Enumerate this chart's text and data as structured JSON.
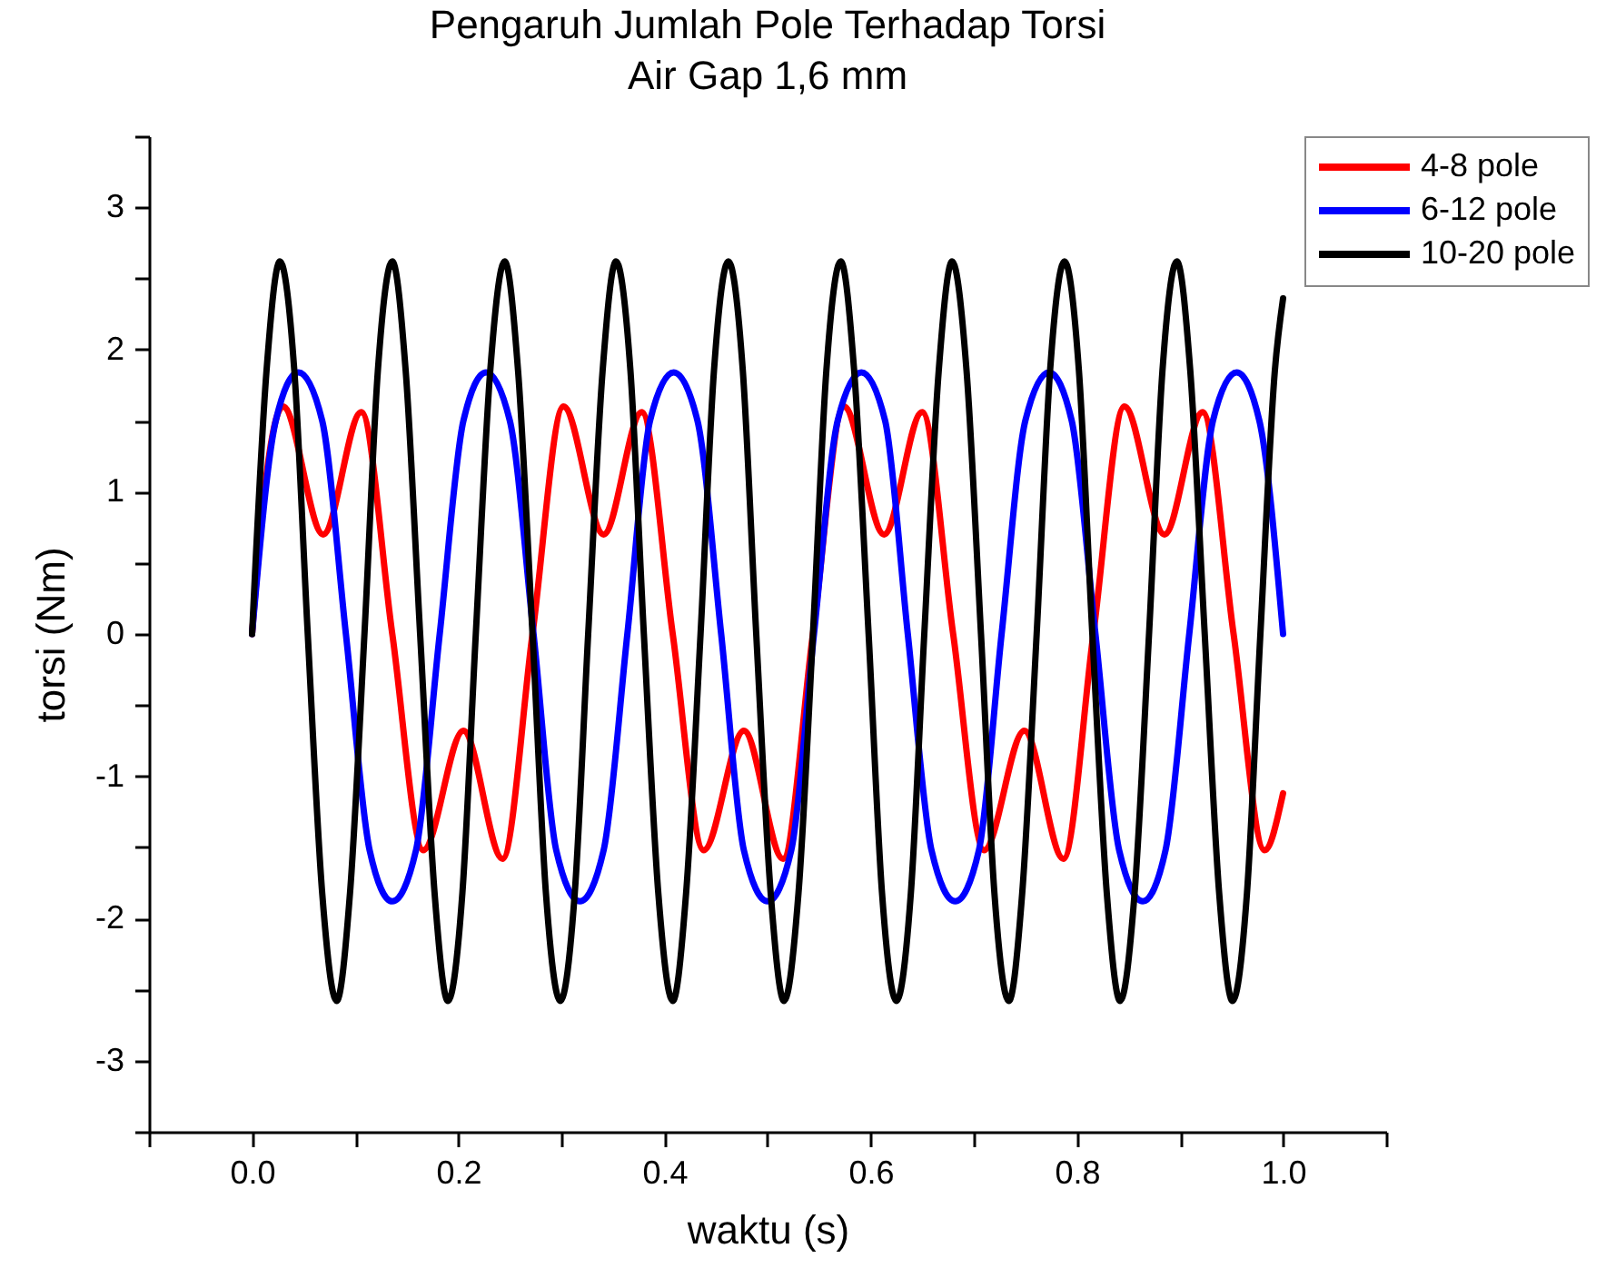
{
  "chart_data": {
    "type": "line",
    "title": "Pengaruh Jumlah Pole Terhadap Torsi",
    "subtitle": "Air Gap 1,6 mm",
    "xlabel": "waktu (s)",
    "ylabel": "torsi (Nm)",
    "xlim": [
      -0.1,
      1.1
    ],
    "ylim": [
      -3.5,
      3.5
    ],
    "xticks": [
      {
        "value": -0.1,
        "label": null
      },
      {
        "value": 0,
        "label": "0.0"
      },
      {
        "value": 0.1,
        "label": null
      },
      0.2,
      {
        "value": 0.3,
        "label": null
      },
      0.4,
      {
        "value": 0.5,
        "label": null
      },
      0.6,
      {
        "value": 0.7,
        "label": null
      },
      0.8,
      {
        "value": 0.9,
        "label": null
      },
      {
        "value": 1,
        "label": "1.0"
      },
      {
        "value": 1.1,
        "label": null
      }
    ],
    "yticks": [
      {
        "value": -3.5,
        "label": null
      },
      -3,
      {
        "value": -2.5,
        "label": null
      },
      -2,
      {
        "value": -1.5,
        "label": null
      },
      -1,
      {
        "value": -0.5,
        "label": null
      },
      0,
      {
        "value": 0.5,
        "label": null
      },
      1,
      {
        "value": 1.5,
        "label": null
      },
      2,
      {
        "value": 2.5,
        "label": null
      },
      3,
      {
        "value": 3.5,
        "label": null
      }
    ],
    "grid": false,
    "legend": "top right",
    "marker": "none",
    "line_style": "solid",
    "series": [
      {
        "name": "4-8 pole",
        "color": "#ff0000",
        "x": [
          0,
          0.012,
          0.03,
          0.069,
          0.106,
          0.136,
          0.166,
          0.205,
          0.243,
          0.272,
          0.302,
          0.341,
          0.378,
          0.408,
          0.438,
          0.477,
          0.515,
          0.544,
          0.574,
          0.613,
          0.65,
          0.68,
          0.71,
          0.749,
          0.787,
          0.816,
          0.846,
          0.885,
          0.922,
          0.952,
          0.982,
          1.0
        ],
        "values": [
          0,
          1.0,
          1.6,
          0.7,
          1.56,
          0,
          -1.52,
          -0.68,
          -1.58,
          0,
          1.6,
          0.7,
          1.56,
          0,
          -1.52,
          -0.68,
          -1.58,
          0,
          1.6,
          0.7,
          1.56,
          0,
          -1.52,
          -0.68,
          -1.58,
          0,
          1.6,
          0.7,
          1.56,
          0,
          -1.52,
          -1.12
        ]
      },
      {
        "name": "6-12 pole",
        "color": "#0000ff",
        "x": [
          0,
          0.023,
          0.045,
          0.068,
          0.091,
          0.114,
          0.136,
          0.159,
          0.182,
          0.205,
          0.227,
          0.25,
          0.273,
          0.295,
          0.318,
          0.341,
          0.364,
          0.386,
          0.409,
          0.432,
          0.455,
          0.477,
          0.5,
          0.523,
          0.545,
          0.568,
          0.591,
          0.614,
          0.636,
          0.659,
          0.682,
          0.705,
          0.727,
          0.75,
          0.773,
          0.795,
          0.818,
          0.841,
          0.864,
          0.886,
          0.909,
          0.932,
          0.955,
          0.977,
          1.0
        ],
        "values": [
          0,
          1.5,
          1.84,
          1.5,
          0,
          -1.52,
          -1.88,
          -1.52,
          0,
          1.5,
          1.84,
          1.5,
          0,
          -1.52,
          -1.88,
          -1.52,
          0,
          1.5,
          1.84,
          1.5,
          0,
          -1.52,
          -1.88,
          -1.52,
          0,
          1.5,
          1.84,
          1.5,
          0,
          -1.52,
          -1.88,
          -1.52,
          0,
          1.5,
          1.84,
          1.5,
          0,
          -1.52,
          -1.88,
          -1.52,
          0,
          1.5,
          1.84,
          1.5,
          0
        ]
      },
      {
        "name": "10-20 pole",
        "color": "#000000",
        "x": [
          0,
          0.014,
          0.027,
          0.041,
          0.054,
          0.068,
          0.082,
          0.095,
          0.109,
          0.122,
          0.136,
          0.149,
          0.163,
          0.177,
          0.19,
          0.204,
          0.217,
          0.231,
          0.245,
          0.258,
          0.272,
          0.285,
          0.299,
          0.313,
          0.326,
          0.34,
          0.353,
          0.367,
          0.38,
          0.394,
          0.408,
          0.421,
          0.435,
          0.448,
          0.462,
          0.476,
          0.489,
          0.503,
          0.516,
          0.53,
          0.544,
          0.557,
          0.571,
          0.584,
          0.598,
          0.611,
          0.625,
          0.639,
          0.652,
          0.666,
          0.679,
          0.693,
          0.707,
          0.72,
          0.734,
          0.747,
          0.761,
          0.774,
          0.788,
          0.802,
          0.815,
          0.829,
          0.842,
          0.856,
          0.87,
          0.883,
          0.897,
          0.91,
          0.924,
          0.938,
          0.951,
          0.965,
          0.978,
          0.992,
          1.0
        ],
        "values": [
          0,
          1.85,
          2.62,
          1.85,
          0,
          -1.82,
          -2.58,
          -1.82,
          0,
          1.85,
          2.62,
          1.85,
          0,
          -1.82,
          -2.58,
          -1.82,
          0,
          1.85,
          2.62,
          1.85,
          0,
          -1.82,
          -2.58,
          -1.82,
          0,
          1.85,
          2.62,
          1.85,
          0,
          -1.82,
          -2.58,
          -1.82,
          0,
          1.85,
          2.62,
          1.85,
          0,
          -1.82,
          -2.58,
          -1.82,
          0,
          1.85,
          2.62,
          1.85,
          0,
          -1.82,
          -2.58,
          -1.82,
          0,
          1.85,
          2.62,
          1.85,
          0,
          -1.82,
          -2.58,
          -1.82,
          0,
          1.85,
          2.62,
          1.85,
          0,
          -1.82,
          -2.58,
          -1.82,
          0,
          1.85,
          2.62,
          1.85,
          0,
          -1.82,
          -2.58,
          -1.82,
          0,
          1.85,
          2.36
        ]
      }
    ]
  }
}
